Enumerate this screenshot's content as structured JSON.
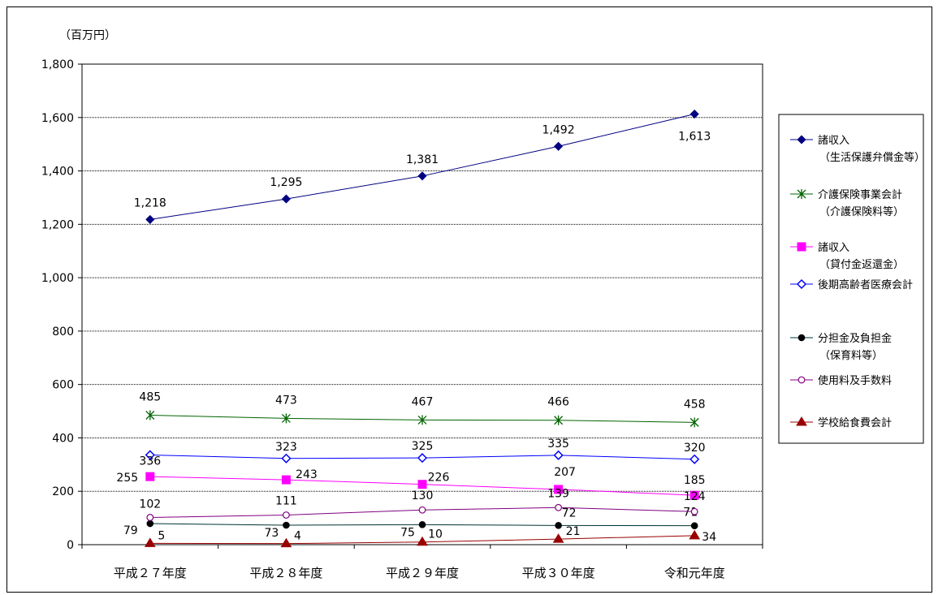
{
  "chart_data": {
    "type": "line",
    "unit_label": "（百万円）",
    "categories": [
      "平成２７年度",
      "平成２８年度",
      "平成２９年度",
      "平成３０年度",
      "令和元年度"
    ],
    "ylim": [
      0,
      1800
    ],
    "yticks": [
      0,
      200,
      400,
      600,
      800,
      1000,
      1200,
      1400,
      1600,
      1800
    ],
    "ytick_labels": [
      "0",
      "200",
      "400",
      "600",
      "800",
      "1,000",
      "1,200",
      "1,400",
      "1,600",
      "1,800"
    ],
    "grid": true,
    "legend_position": "right",
    "series": [
      {
        "name_line1": "諸収入",
        "name_line2": "（生活保護弁償金等）",
        "marker": "diamond-filled",
        "color": "#000080",
        "values": [
          1218,
          1295,
          1381,
          1492,
          1613
        ],
        "labels": [
          "1,218",
          "1,295",
          "1,381",
          "1,492",
          "1,613"
        ]
      },
      {
        "name_line1": "介護保険事業会計",
        "name_line2": "（介護保険料等）",
        "marker": "asterisk",
        "color": "#006400",
        "values": [
          485,
          473,
          467,
          466,
          458
        ],
        "labels": [
          "485",
          "473",
          "467",
          "466",
          "458"
        ]
      },
      {
        "name_line1": "諸収入",
        "name_line2": "（貸付金返還金）",
        "marker": "square-filled",
        "color": "#ff00ff",
        "values": [
          255,
          243,
          226,
          207,
          185
        ],
        "labels": [
          "255",
          "243",
          "226",
          "207",
          "185"
        ]
      },
      {
        "name_line1": "後期高齢者医療会計",
        "name_line2": "",
        "marker": "diamond-open",
        "color": "#0000ff",
        "values": [
          336,
          323,
          325,
          335,
          320
        ],
        "labels": [
          "336",
          "323",
          "325",
          "335",
          "320"
        ]
      },
      {
        "name_line1": "分担金及負担金",
        "name_line2": "（保育料等）",
        "marker": "circle-filled",
        "color": "#003333",
        "values": [
          79,
          73,
          75,
          72,
          71
        ],
        "labels": [
          "79",
          "73",
          "75",
          "72",
          "71"
        ]
      },
      {
        "name_line1": "使用料及手数料",
        "name_line2": "",
        "marker": "circle-open",
        "color": "#800080",
        "values": [
          102,
          111,
          130,
          139,
          124
        ],
        "labels": [
          "102",
          "111",
          "130",
          "139",
          "124"
        ]
      },
      {
        "name_line1": "学校給食費会計",
        "name_line2": "",
        "marker": "triangle-filled",
        "color": "#990000",
        "values": [
          5,
          4,
          10,
          21,
          34
        ],
        "labels": [
          "5",
          "4",
          "10",
          "21",
          "34"
        ]
      }
    ]
  }
}
